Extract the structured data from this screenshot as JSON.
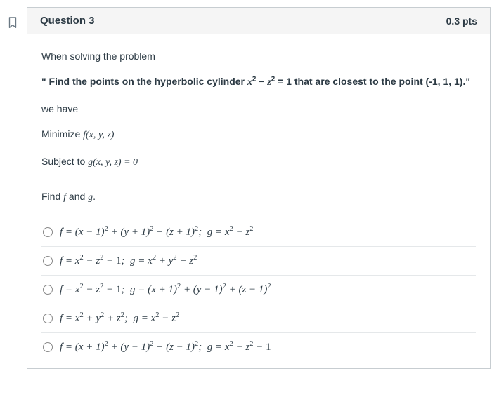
{
  "colors": {
    "border": "#c7cdd1",
    "header_bg": "#f5f5f5",
    "text": "#2d3b45",
    "option_divider": "#e5e8ea",
    "flag_stroke": "#6a7883"
  },
  "question": {
    "title": "Question 3",
    "points": "0.3 pts",
    "intro": "When solving the problem",
    "statement_prefix": "\" Find the points on the hyperbolic cylinder ",
    "statement_math": "x² − z² = 1",
    "statement_suffix": " that are closest to the point (-1, 1, 1).\"",
    "we_have": "we have",
    "minimize": "Minimize ",
    "minimize_fn": "f(x, y, z)",
    "subject": "Subject to ",
    "subject_fn": "g(x, y, z) = 0",
    "find_line_a": "Find ",
    "find_line_b": " and ",
    "find_f": "f",
    "find_g": "g",
    "find_end": "."
  },
  "options": [
    {
      "html": "f = (x − 1)<sup>2</sup> + (y + 1)<sup>2</sup> + (z + 1)<sup>2</sup>;&nbsp; g = x<sup>2</sup> − z<sup>2</sup>"
    },
    {
      "html": "f = x<sup>2</sup> − z<sup>2</sup> − <span class='rm'>1</span>;&nbsp; g = x<sup>2</sup> + y<sup>2</sup> + z<sup>2</sup>"
    },
    {
      "html": "f = x<sup>2</sup> − z<sup>2</sup> − <span class='rm'>1</span>;&nbsp; g = (x + 1)<sup>2</sup> + (y − 1)<sup>2</sup> + (z − 1)<sup>2</sup>"
    },
    {
      "html": "f = x<sup>2</sup> + y<sup>2</sup> + z<sup>2</sup>;&nbsp; g = x<sup>2</sup> − z<sup>2</sup>"
    },
    {
      "html": "f = (x + 1)<sup>2</sup> + (y − 1)<sup>2</sup> + (z − 1)<sup>2</sup>;&nbsp; g = x<sup>2</sup> − z<sup>2</sup> − <span class='rm'>1</span>"
    }
  ]
}
